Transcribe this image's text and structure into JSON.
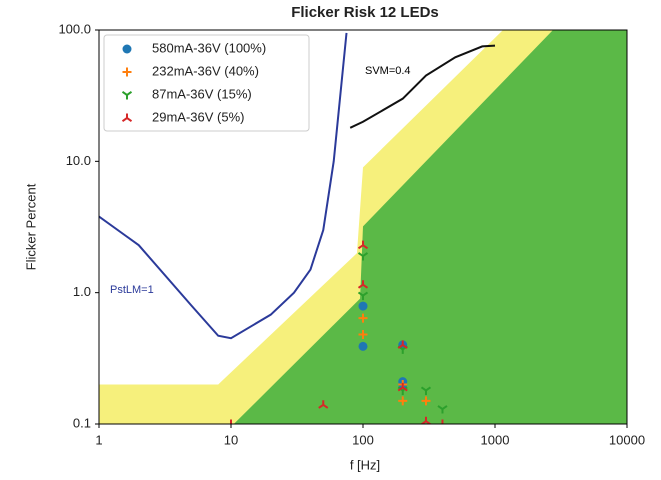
{
  "chart_data": {
    "type": "scatter",
    "title": "Flicker Risk 12 LEDs",
    "xlabel": "f [Hz]",
    "ylabel": "Flicker Percent",
    "xscale": "log",
    "yscale": "log",
    "xlim": [
      1,
      10000
    ],
    "ylim": [
      0.1,
      100
    ],
    "xticks": [
      1,
      10,
      100,
      1000,
      10000
    ],
    "yticks": [
      {
        "value": 0.1,
        "label": "0.1"
      },
      {
        "value": 1,
        "label": "1.0"
      },
      {
        "value": 10,
        "label": "10.0"
      },
      {
        "value": 100,
        "label": "100.0"
      }
    ],
    "legend": "upper left",
    "regions": [
      {
        "color": "#f6f07c",
        "x": [
          1,
          1,
          8,
          90,
          100,
          1150,
          10000,
          10000
        ],
        "y": [
          0.1,
          0.2,
          0.2,
          2,
          9,
          100,
          100,
          0.1
        ]
      },
      {
        "color": "#5bb947",
        "x": [
          10.5,
          95,
          100,
          2750,
          10000,
          10000
        ],
        "y": [
          0.1,
          0.9,
          3.2,
          100,
          100,
          0.1
        ]
      }
    ],
    "lines": [
      {
        "color": "#2b3a9a",
        "x": [
          1,
          2,
          5,
          8,
          10,
          20,
          30,
          40,
          50,
          60,
          75
        ],
        "y": [
          3.8,
          2.3,
          0.8,
          0.47,
          0.45,
          0.68,
          1.0,
          1.5,
          3,
          10,
          95
        ]
      },
      {
        "color": "#111111",
        "x": [
          80,
          100,
          200,
          300,
          500,
          800,
          1000
        ],
        "y": [
          18,
          20,
          30,
          45,
          62,
          75,
          76
        ]
      }
    ],
    "annotations": [
      "SVM=0.4",
      "PstLM=1"
    ],
    "series": [
      {
        "name": "580mA-36V (100%)",
        "color": "#1f77b4",
        "marker": "circle",
        "x": [
          100,
          100,
          200,
          200,
          200
        ],
        "values": [
          0.39,
          0.79,
          0.4,
          0.21,
          0.2
        ]
      },
      {
        "name": "232mA-36V (40%)",
        "color": "#ff7f0e",
        "marker": "plus",
        "x": [
          100,
          100,
          200,
          300,
          200
        ],
        "values": [
          0.64,
          0.48,
          0.15,
          0.15,
          0.2
        ]
      },
      {
        "name": "87mA-36V (15%)",
        "color": "#2ca02c",
        "marker": "tri_down",
        "x": [
          100,
          100,
          200,
          300,
          400,
          200
        ],
        "values": [
          1.9,
          0.95,
          0.37,
          0.18,
          0.13,
          0.18
        ]
      },
      {
        "name": "29mA-36V (5%)",
        "color": "#d62728",
        "marker": "tri_up",
        "x": [
          100,
          100,
          50,
          200,
          300,
          400,
          10,
          200
        ],
        "values": [
          2.3,
          1.15,
          0.14,
          0.19,
          0.105,
          0.1,
          0.1,
          0.4
        ]
      }
    ]
  }
}
